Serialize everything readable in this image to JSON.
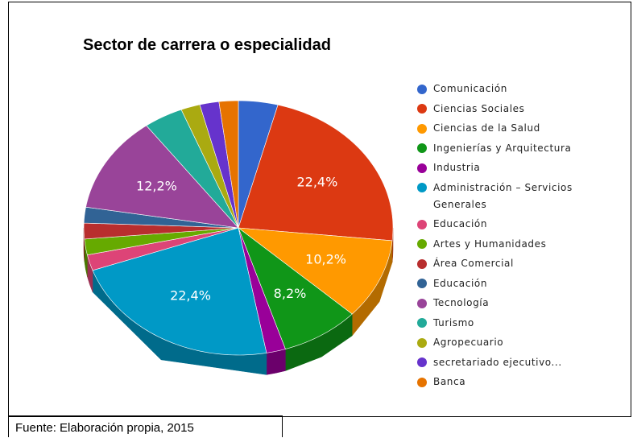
{
  "chart_data": {
    "type": "pie",
    "title": "Sector de carrera o especialidad",
    "categories": [
      "Comunicación",
      "Ciencias Sociales",
      "Ciencias de la Salud",
      "Ingenierías y Arquitectura",
      "Industria",
      "Administración – Servicios Generales",
      "Educación",
      "Artes y Humanidades",
      "Área Comercial",
      "Educación",
      "Tecnología",
      "Turismo",
      "Agropecuario",
      "secretariado ejecutivo...",
      "Banca"
    ],
    "values": [
      4.1,
      22.4,
      10.2,
      8.2,
      2.0,
      22.4,
      2.0,
      2.0,
      2.0,
      2.0,
      12.2,
      4.1,
      2.0,
      2.0,
      2.0
    ],
    "value_labels": [
      null,
      "22,4%",
      "10,2%",
      "8,2%",
      null,
      "22,4%",
      null,
      null,
      null,
      null,
      "12,2%",
      null,
      null,
      null,
      null
    ],
    "colors": [
      "#3366cc",
      "#dc3912",
      "#ff9900",
      "#109618",
      "#990099",
      "#0099c6",
      "#dd4477",
      "#66aa00",
      "#b82e2e",
      "#316395",
      "#994499",
      "#22aa99",
      "#aaaa11",
      "#6633cc",
      "#e67300"
    ],
    "legend": "right"
  },
  "caption": "Fuente: Elaboración propia, 2015"
}
